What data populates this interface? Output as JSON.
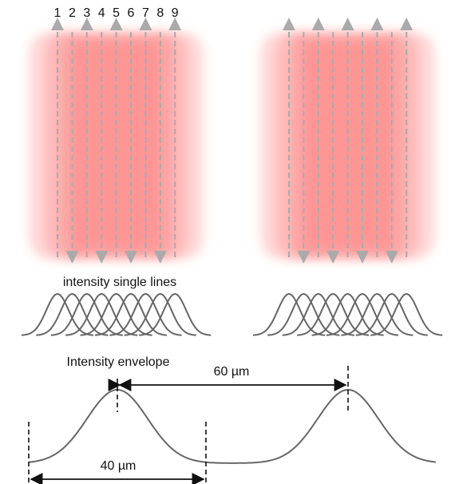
{
  "line_numbers": [
    "1",
    "2",
    "3",
    "4",
    "5",
    "6",
    "7",
    "8",
    "9"
  ],
  "single_lines_label": "intensity single lines",
  "envelope_label": "Intensity envelope",
  "spacing_label": "60 µm",
  "width_label": "40 µm"
}
